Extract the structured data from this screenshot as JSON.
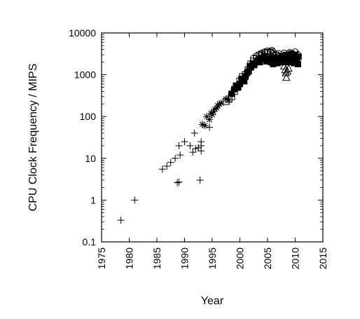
{
  "chart_data": {
    "type": "scatter",
    "title": "",
    "xlabel": "Year",
    "ylabel": "CPU Clock Frequency / MIPS",
    "xlim": [
      1975,
      2015
    ],
    "ylim": [
      0.1,
      10000
    ],
    "yscale": "log",
    "grid": false,
    "legend": "none",
    "x_ticks": [
      "1975",
      "1980",
      "1985",
      "1990",
      "1995",
      "2000",
      "2005",
      "2010",
      "2015"
    ],
    "y_ticks": [
      "0.1",
      "1",
      "10",
      "100",
      "1000",
      "10000"
    ],
    "series": [
      {
        "marker": "plus",
        "points": [
          [
            1978.5,
            0.33
          ],
          [
            1981.0,
            1.0
          ],
          [
            1986.0,
            5.5
          ],
          [
            1986.8,
            6.5
          ],
          [
            1987.5,
            8.0
          ],
          [
            1988.3,
            10.0
          ],
          [
            1988.7,
            2.6
          ],
          [
            1989.0,
            2.7
          ],
          [
            1989.2,
            12.0
          ],
          [
            1989.0,
            20.0
          ],
          [
            1990.0,
            25.0
          ],
          [
            1991.0,
            20.0
          ],
          [
            1991.5,
            14.0
          ],
          [
            1991.8,
            40.0
          ],
          [
            1992.0,
            17.0
          ],
          [
            1992.5,
            18.0
          ],
          [
            1993.0,
            20.0
          ],
          [
            1993.0,
            15.0
          ],
          [
            1993.0,
            25.0
          ],
          [
            1992.8,
            3.0
          ],
          [
            1994.5,
            55.0
          ]
        ]
      },
      {
        "marker": "asterisk",
        "points": [
          [
            1993.2,
            65.0
          ],
          [
            1993.7,
            60.0
          ],
          [
            1994.0,
            100.0
          ],
          [
            1994.5,
            85.0
          ],
          [
            1994.8,
            120.0
          ],
          [
            1995.2,
            130.0
          ],
          [
            1995.5,
            150.0
          ],
          [
            1995.8,
            160.0
          ],
          [
            1996.0,
            180.0
          ],
          [
            1996.3,
            200.0
          ],
          [
            1996.6,
            210.0
          ],
          [
            1995.0,
            110.0
          ],
          [
            1997.5,
            260.0
          ],
          [
            1998.0,
            250.0
          ]
        ]
      },
      {
        "marker": "square",
        "points": [
          [
            1997.5,
            230.0
          ],
          [
            1998.0,
            260.0
          ],
          [
            1998.5,
            300.0
          ],
          [
            1999.0,
            400.0
          ],
          [
            1999.5,
            500.0
          ],
          [
            2000.0,
            700.0
          ],
          [
            2000.5,
            900.0
          ],
          [
            2001.0,
            1000.0
          ],
          [
            2001.5,
            1300.0
          ],
          [
            2002.0,
            1800.0
          ],
          [
            2002.5,
            2100.0
          ],
          [
            2003.0,
            2400.0
          ],
          [
            2003.5,
            2800.0
          ],
          [
            2004.0,
            3000.0
          ],
          [
            2004.5,
            3200.0
          ],
          [
            2005.0,
            3400.0
          ],
          [
            2005.5,
            3300.0
          ],
          [
            2006.0,
            2800.0
          ]
        ]
      },
      {
        "marker": "filled-square",
        "points": [
          [
            1998.5,
            350.0
          ],
          [
            1999.0,
            450.0
          ],
          [
            1999.3,
            550.0
          ],
          [
            1999.7,
            500.0
          ],
          [
            2000.0,
            600.0
          ],
          [
            2000.3,
            800.0
          ],
          [
            2000.6,
            750.0
          ],
          [
            2001.0,
            900.0
          ],
          [
            2001.3,
            1100.0
          ],
          [
            2001.6,
            1200.0
          ],
          [
            2002.0,
            1500.0
          ],
          [
            2002.3,
            1800.0
          ],
          [
            2002.6,
            1700.0
          ],
          [
            2003.0,
            2000.0
          ],
          [
            2003.3,
            2200.0
          ],
          [
            2003.6,
            2000.0
          ],
          [
            2004.0,
            2400.0
          ],
          [
            2004.3,
            2600.0
          ],
          [
            2004.6,
            2800.0
          ],
          [
            2005.0,
            2200.0
          ],
          [
            2005.3,
            2400.0
          ],
          [
            2005.6,
            2000.0
          ],
          [
            2006.0,
            1800.0
          ],
          [
            2006.3,
            2300.0
          ],
          [
            2006.6,
            2600.0
          ],
          [
            2007.0,
            2200.0
          ],
          [
            2007.3,
            2400.0
          ],
          [
            2007.6,
            2800.0
          ],
          [
            2008.0,
            2600.0
          ],
          [
            2008.3,
            3000.0
          ],
          [
            2008.6,
            2400.0
          ],
          [
            2009.0,
            2800.0
          ],
          [
            2009.3,
            3200.0
          ],
          [
            2009.6,
            2600.0
          ],
          [
            2010.0,
            3000.0
          ],
          [
            2010.3,
            2200.0
          ],
          [
            2010.6,
            2700.0
          ],
          [
            2000.8,
            700.0
          ],
          [
            2001.8,
            1600.0
          ],
          [
            2003.8,
            2500.0
          ],
          [
            2005.8,
            2500.0
          ],
          [
            2007.8,
            2000.0
          ],
          [
            2009.8,
            1900.0
          ],
          [
            2010.5,
            1800.0
          ],
          [
            2004.8,
            2100.0
          ],
          [
            2006.8,
            1900.0
          ],
          [
            2008.8,
            2000.0
          ]
        ]
      },
      {
        "marker": "circle",
        "points": [
          [
            2002.5,
            2500.0
          ],
          [
            2003.0,
            2800.0
          ],
          [
            2003.5,
            3100.0
          ],
          [
            2004.0,
            3300.0
          ],
          [
            2004.5,
            3500.0
          ],
          [
            2005.0,
            3700.0
          ],
          [
            2005.5,
            3600.0
          ],
          [
            2006.0,
            3500.0
          ],
          [
            2006.5,
            3000.0
          ],
          [
            2007.0,
            3200.0
          ],
          [
            2008.0,
            3300.0
          ],
          [
            2009.0,
            3400.0
          ],
          [
            2010.0,
            3500.0
          ],
          [
            2003.8,
            3000.0
          ],
          [
            2005.8,
            3800.0
          ]
        ]
      },
      {
        "marker": "diamond",
        "points": [
          [
            2006.0,
            3200.0
          ],
          [
            2007.0,
            2900.0
          ],
          [
            2008.0,
            2800.0
          ],
          [
            2009.0,
            3000.0
          ],
          [
            2010.0,
            2900.0
          ],
          [
            2010.5,
            3100.0
          ]
        ]
      },
      {
        "marker": "triangle",
        "points": [
          [
            2008.0,
            1600.0
          ],
          [
            2008.2,
            1300.0
          ],
          [
            2008.3,
            1100.0
          ],
          [
            2008.4,
            850.0
          ],
          [
            2008.6,
            1200.0
          ],
          [
            2008.8,
            1400.0
          ]
        ]
      }
    ]
  }
}
